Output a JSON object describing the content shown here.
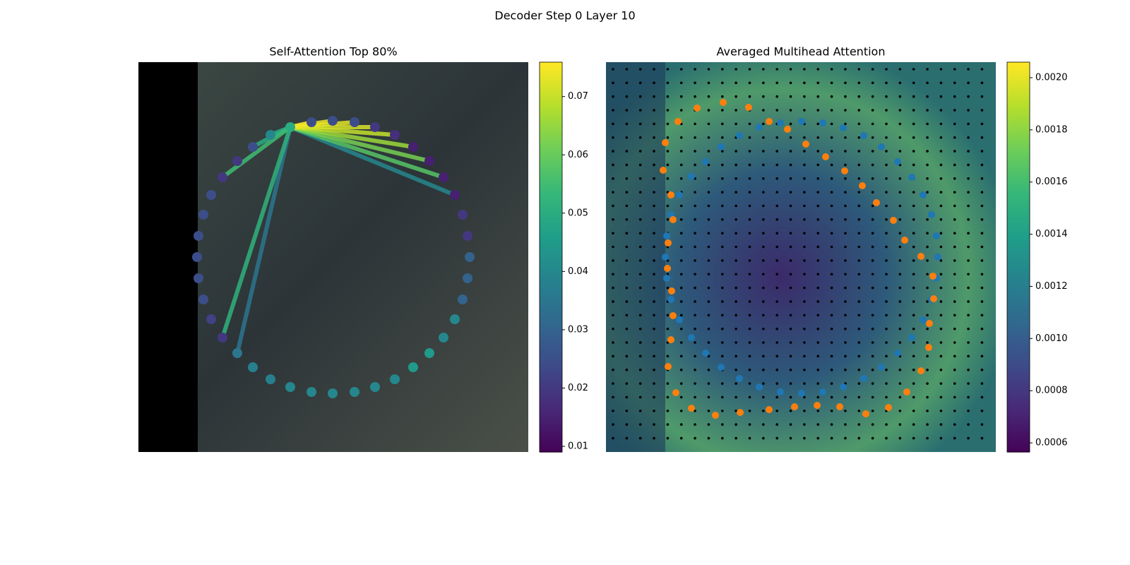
{
  "title": "Decoder Step 0 Layer 10",
  "chart_data": [
    {
      "type": "attention",
      "title": "Self-Attention Top 80%",
      "xlim": [
        0,
        552
      ],
      "ylim": [
        552,
        0
      ],
      "x": [
        215,
        245,
        275,
        306,
        335,
        363,
        389,
        412,
        432,
        448,
        459,
        466,
        469,
        466,
        459,
        448,
        432,
        412,
        389,
        363,
        335,
        306,
        275,
        245,
        215,
        187,
        162,
        140,
        119,
        103,
        92,
        85,
        83,
        85,
        92,
        103,
        119,
        140,
        162,
        187
      ],
      "y": [
        92,
        85,
        83,
        85,
        92,
        103,
        120,
        140,
        163,
        188,
        216,
        246,
        276,
        306,
        336,
        364,
        390,
        412,
        432,
        449,
        460,
        467,
        469,
        467,
        460,
        449,
        432,
        412,
        390,
        364,
        336,
        306,
        276,
        246,
        216,
        188,
        163,
        140,
        120,
        103
      ],
      "values": [
        0.05,
        0.025,
        0.025,
        0.025,
        0.02,
        0.018,
        0.015,
        0.015,
        0.015,
        0.015,
        0.02,
        0.02,
        0.03,
        0.03,
        0.03,
        0.04,
        0.04,
        0.045,
        0.045,
        0.04,
        0.04,
        0.04,
        0.04,
        0.04,
        0.04,
        0.038,
        0.038,
        0.035,
        0.02,
        0.022,
        0.025,
        0.025,
        0.025,
        0.025,
        0.025,
        0.025,
        0.02,
        0.02,
        0.025,
        0.04
      ],
      "edge_targets": [
        1,
        2,
        3,
        4,
        5,
        6,
        7,
        8,
        9,
        39,
        38,
        36,
        28,
        27
      ],
      "edge_values": [
        0.075,
        0.074,
        0.073,
        0.072,
        0.07,
        0.066,
        0.062,
        0.058,
        0.04,
        0.05,
        0.05,
        0.055,
        0.052,
        0.035
      ],
      "colorbar_lim": [
        0.00903,
        0.0759
      ],
      "colorbar_ticks": [
        0.01,
        0.02,
        0.03,
        0.04,
        0.05,
        0.06,
        0.07
      ]
    },
    {
      "type": "scatter",
      "title": "Averaged Multihead Attention",
      "xlim": [
        0,
        552
      ],
      "ylim": [
        552,
        0
      ],
      "series": [
        {
          "color": "#1f77b4",
          "x": [
            104,
            121,
            141,
            163,
            189,
            217,
            247,
            277,
            307,
            336,
            365,
            390,
            413,
            433,
            449,
            461,
            468,
            470,
            468,
            461,
            449,
            433,
            413,
            390,
            365,
            336,
            307,
            277,
            247,
            217,
            189,
            163,
            141,
            121,
            104,
            92,
            86,
            84,
            86,
            92
          ],
          "y": [
            188,
            162,
            141,
            120,
            104,
            92,
            86,
            84,
            86,
            93,
            104,
            120,
            141,
            163,
            188,
            216,
            246,
            276,
            306,
            336,
            365,
            390,
            412,
            432,
            448,
            460,
            467,
            469,
            467,
            460,
            448,
            432,
            412,
            390,
            365,
            336,
            306,
            276,
            246,
            216
          ]
        },
        {
          "color": "#ff7f0e",
          "x": [
            84,
            102,
            129,
            166,
            202,
            231,
            257,
            283,
            311,
            338,
            363,
            383,
            407,
            423,
            446,
            463,
            464,
            458,
            457,
            446,
            426,
            400,
            368,
            331,
            299,
            267,
            231,
            190,
            155,
            121,
            99,
            88,
            92,
            95,
            93,
            87,
            88,
            95,
            92,
            81
          ],
          "y": [
            114,
            84,
            65,
            57,
            64,
            84,
            95,
            116,
            134,
            154,
            175,
            199,
            224,
            252,
            275,
            303,
            335,
            370,
            404,
            437,
            467,
            489,
            498,
            488,
            486,
            488,
            492,
            496,
            500,
            490,
            468,
            431,
            393,
            359,
            324,
            292,
            256,
            223,
            188,
            153
          ]
        }
      ],
      "colorbar_lim": [
        0.000565,
        0.0020596
      ],
      "colorbar_ticks": [
        0.0006,
        0.0008,
        {
          "value": 0.001,
          "label": "0.0010"
        },
        0.0012,
        0.0014,
        0.0016,
        0.0018,
        {
          "value": 0.002,
          "label": "0.0020"
        }
      ]
    }
  ]
}
